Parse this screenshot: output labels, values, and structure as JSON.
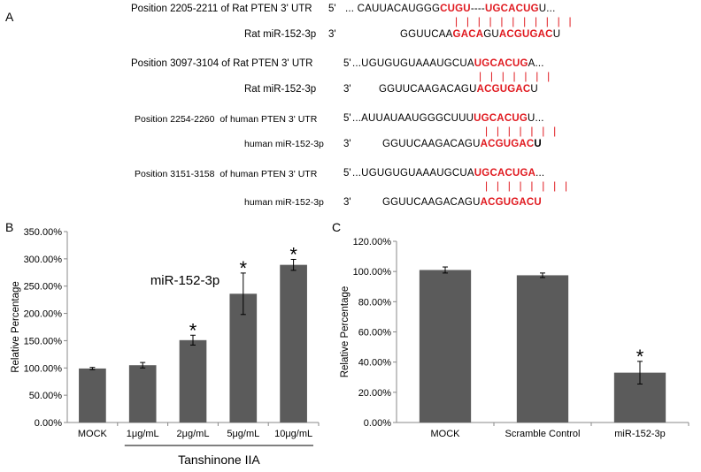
{
  "panels": {
    "a": "A",
    "b": "B",
    "c": "C"
  },
  "alignments": [
    {
      "label": "Position 2205-2211 of Rat PTEN 3' UTR",
      "end": "5'",
      "seq": [
        {
          "t": "... CAUUACAUGGG"
        },
        {
          "t": "CUGU",
          "c": "hl"
        },
        {
          "t": "----"
        },
        {
          "t": "UGCACUG",
          "c": "hl"
        },
        {
          "t": "U..."
        }
      ],
      "pairs": "| | | |    | | | | | | |",
      "mirna_label": "Rat miR-152-3p",
      "mirna_end": "3'",
      "mirna_seq": [
        {
          "t": "GGUUCAA"
        },
        {
          "t": "GACA",
          "c": "hl"
        },
        {
          "t": "GU"
        },
        {
          "t": "ACGUGAC",
          "c": "hl"
        },
        {
          "t": "U"
        }
      ]
    },
    {
      "label": "Position 3097-3104 of Rat PTEN 3' UTR",
      "end": "5'",
      "seq": [
        {
          "t": "...UGUGUGUAAAUGCUA"
        },
        {
          "t": "UGCACUG",
          "c": "hl"
        },
        {
          "t": "A..."
        }
      ],
      "pairs": "| | | | | | |",
      "mirna_label": "Rat miR-152-3p",
      "mirna_end": "3'",
      "mirna_seq": [
        {
          "t": "GGUUCAAGACAGU"
        },
        {
          "t": "ACGUGAC",
          "c": "hl"
        },
        {
          "t": "U"
        }
      ]
    },
    {
      "label": "Position 2254-2260  of human PTEN 3' UTR",
      "end": "5'",
      "seq": [
        {
          "t": "...AUUAUAAUGGGCUUU"
        },
        {
          "t": "UGCACUG",
          "c": "hl"
        },
        {
          "t": "U..."
        }
      ],
      "pairs": "| | | | | | |",
      "mirna_label": "human miR-152-3p",
      "mirna_end": "3'",
      "mirna_seq": [
        {
          "t": "GGUUCAAGACAGU"
        },
        {
          "t": "ACGUGAC",
          "c": "hl"
        },
        {
          "t": "U",
          "c": "bold"
        }
      ]
    },
    {
      "label": "Position 3151-3158  of human PTEN 3' UTR",
      "end": "5'",
      "seq": [
        {
          "t": "...UGUGUGUAAAUGCUA"
        },
        {
          "t": "UGCACUGA",
          "c": "hl"
        },
        {
          "t": "..."
        }
      ],
      "pairs": "| | | | | | | |",
      "mirna_label": "human miR-152-3p",
      "mirna_end": "3'",
      "mirna_seq": [
        {
          "t": "GGUUCAAGACAGU"
        },
        {
          "t": "ACGUGACU",
          "c": "hl"
        }
      ]
    }
  ],
  "chart_data": [
    {
      "type": "bar",
      "ylabel": "Relative Percentage",
      "xlabel": "Tanshinone IIA",
      "annotation": "miR-152-3p",
      "ylim": [
        0,
        350
      ],
      "yticks": [
        "0.00%",
        "50.00%",
        "100.00%",
        "150.00%",
        "200.00%",
        "250.00%",
        "300.00%",
        "350.00%"
      ],
      "categories": [
        "MOCK",
        "1μg/mL",
        "2μg/mL",
        "5μg/mL",
        "10μg/mL"
      ],
      "values": [
        99,
        105,
        151,
        236,
        289
      ],
      "errors": [
        2,
        5,
        9,
        38,
        10
      ],
      "significance": [
        "",
        "",
        "*",
        "*",
        "*"
      ],
      "bar_color": "#5b5b5b",
      "grid": false
    },
    {
      "type": "bar",
      "ylabel": "Relative Percentage",
      "ylim": [
        0,
        120
      ],
      "yticks": [
        "0.00%",
        "20.00%",
        "40.00%",
        "60.00%",
        "80.00%",
        "100.00%",
        "120.00%"
      ],
      "categories": [
        "MOCK",
        "Scramble Control",
        "miR-152-3p"
      ],
      "values": [
        101,
        97.5,
        33
      ],
      "errors": [
        2,
        1.5,
        7.5
      ],
      "significance": [
        "",
        "",
        "*"
      ],
      "bar_color": "#5b5b5b",
      "grid": false
    }
  ]
}
